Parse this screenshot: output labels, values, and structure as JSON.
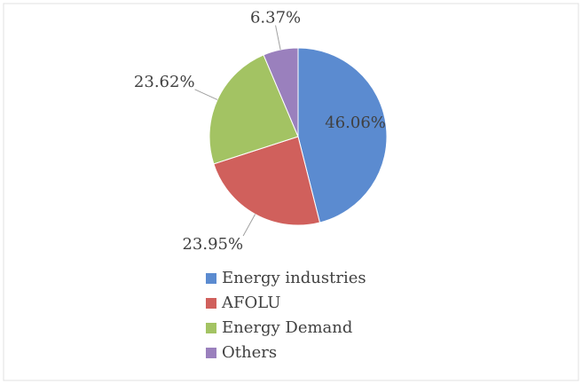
{
  "chart_data": {
    "type": "pie",
    "categories": [
      "Energy industries",
      "AFOLU",
      "Energy Demand",
      "Others"
    ],
    "values": [
      46.06,
      23.95,
      23.62,
      6.37
    ],
    "value_labels": [
      "46.06%",
      "23.95%",
      "23.62%",
      "6.37%"
    ],
    "colors": [
      "#5b8bd0",
      "#d0605c",
      "#a3c363",
      "#9a80bd"
    ],
    "legend": "bottom"
  }
}
